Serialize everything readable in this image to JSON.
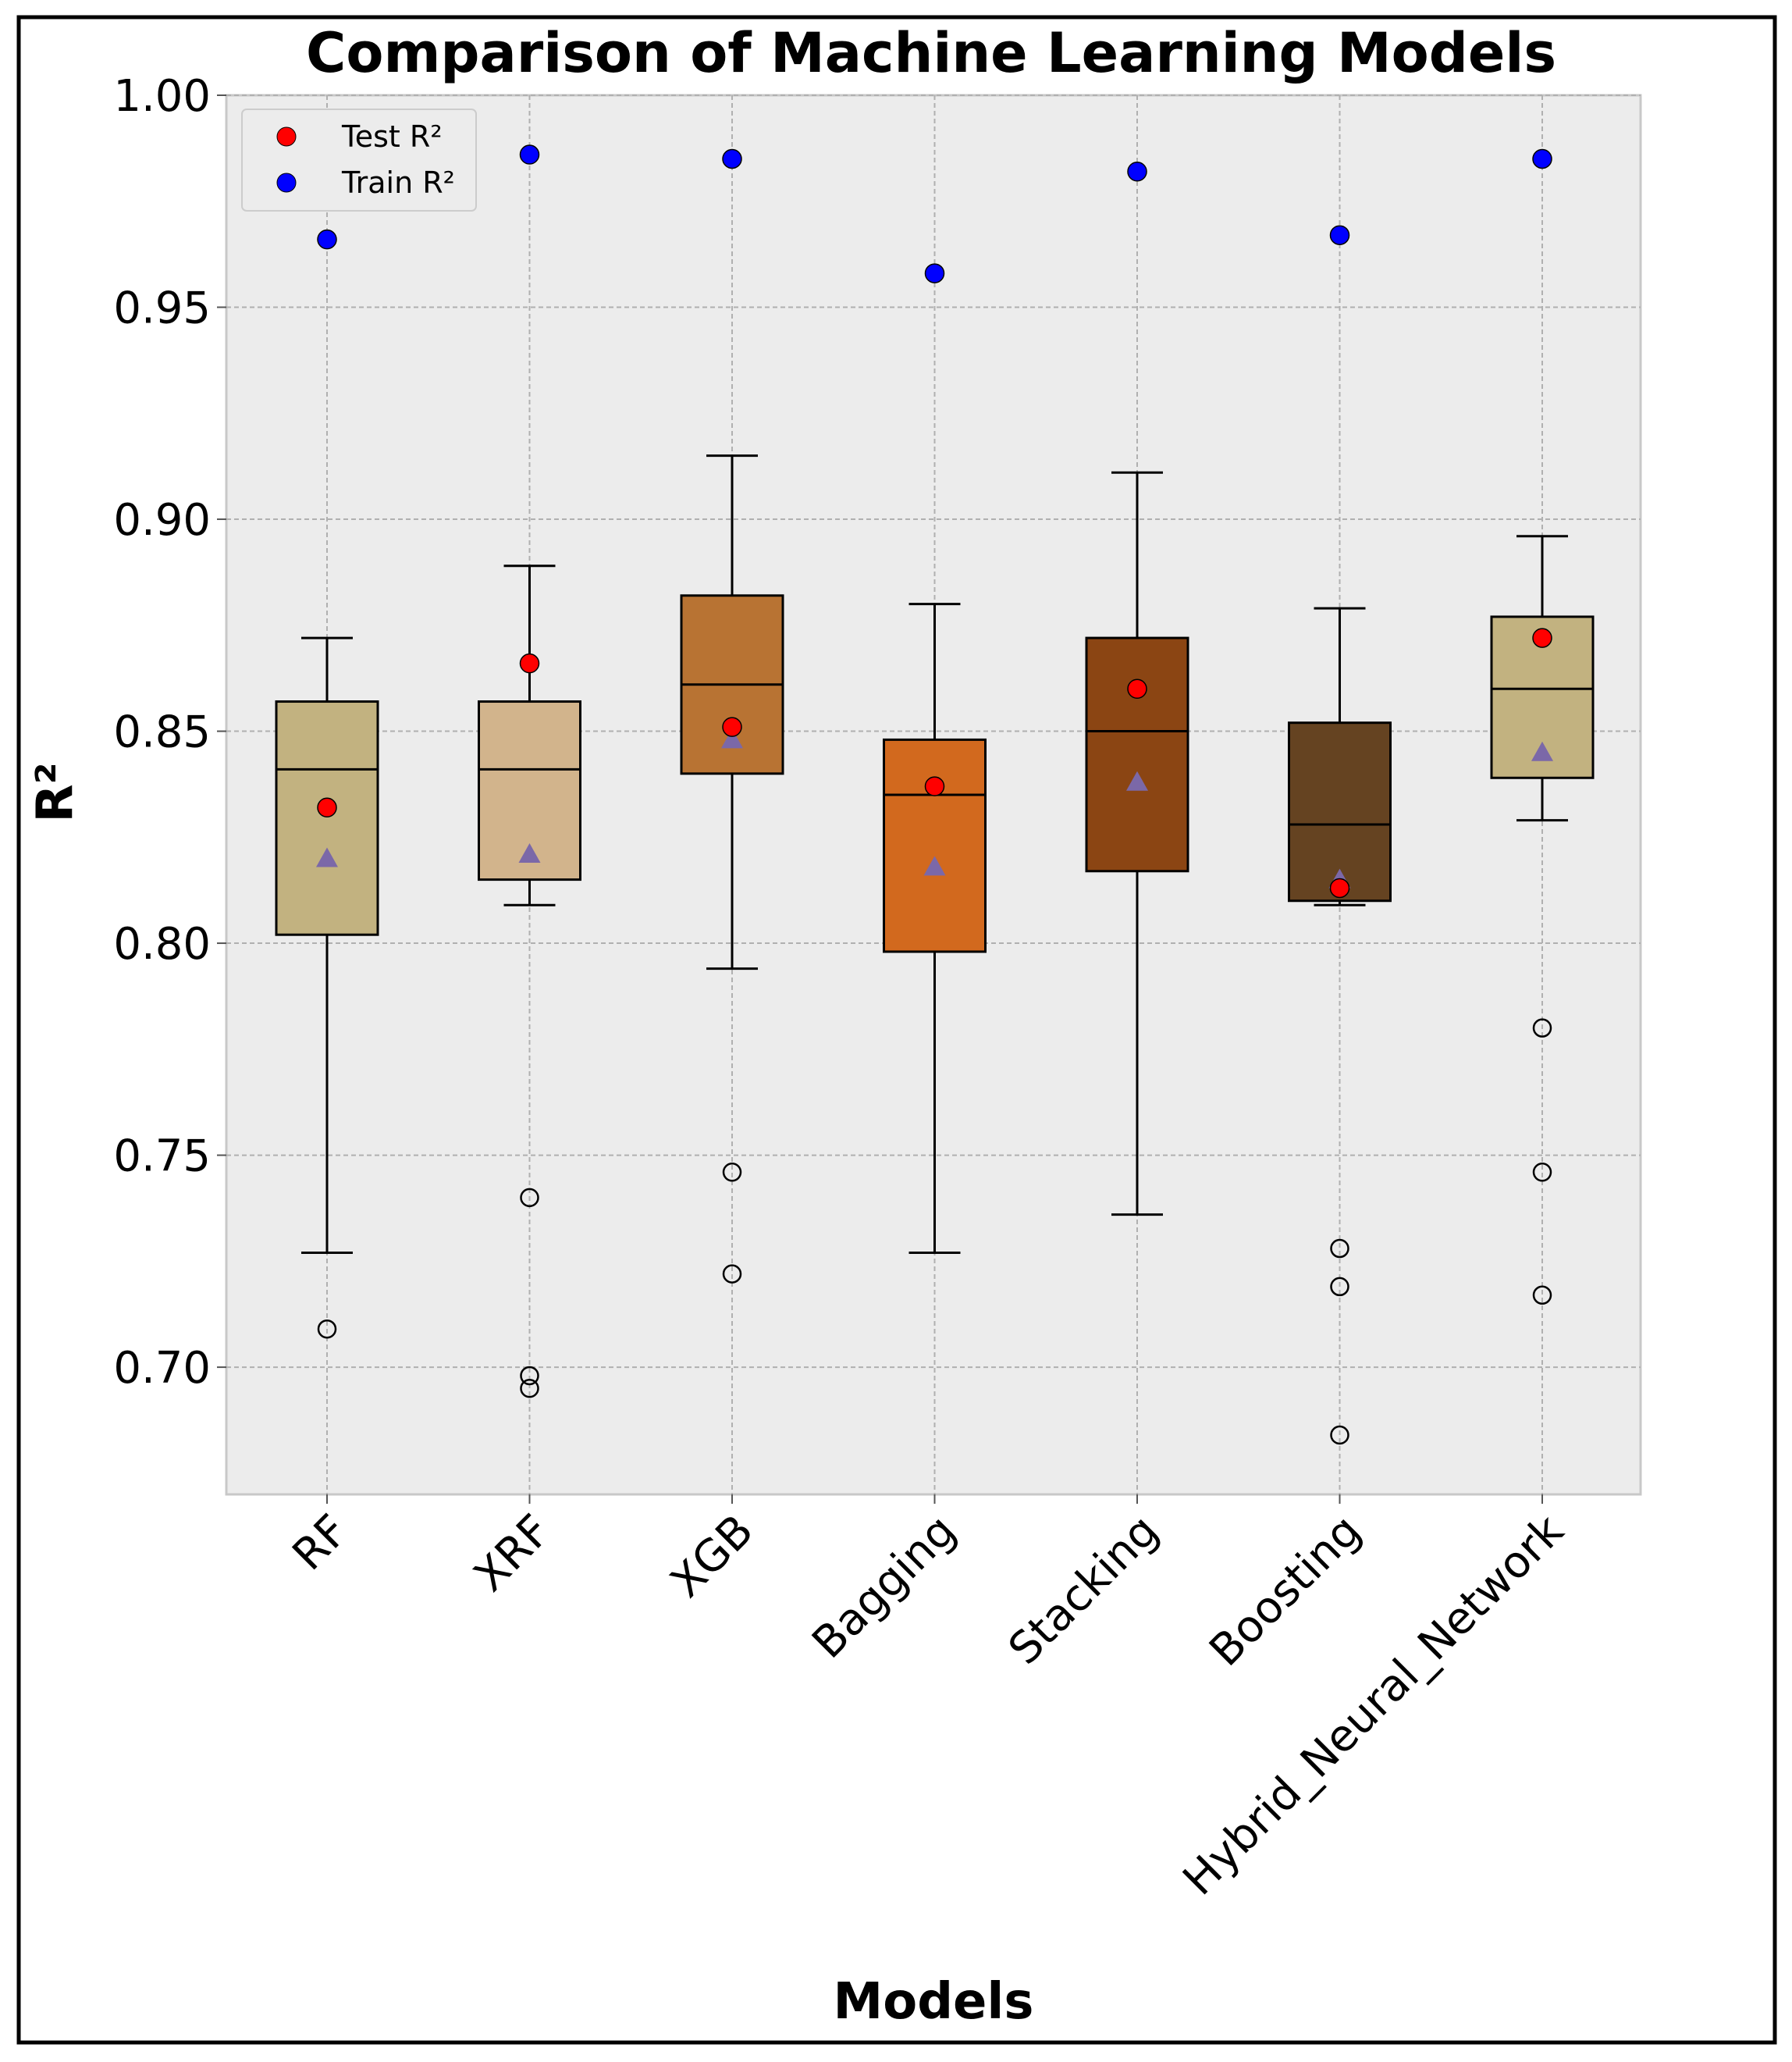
{
  "chart_data": {
    "type": "box",
    "title": "Comparison of Machine Learning Models",
    "xlabel": "Models",
    "ylabel": "R²",
    "ylim": [
      0.67,
      1.0
    ],
    "yticks": [
      "0.70",
      "0.75",
      "0.80",
      "0.85",
      "0.90",
      "0.95",
      "1.00"
    ],
    "ytick_values": [
      0.7,
      0.75,
      0.8,
      0.85,
      0.9,
      0.95,
      1.0
    ],
    "grid": true,
    "legend": {
      "position": "top-left",
      "entries": [
        {
          "label": "Test R²",
          "color": "#ff0000"
        },
        {
          "label": "Train R²",
          "color": "#0000ff"
        }
      ]
    },
    "categories": [
      "RF",
      "XRF",
      "XGB",
      "Bagging",
      "Stacking",
      "Boosting",
      "Hybrid_Neural_Network"
    ],
    "boxes": [
      {
        "name": "RF",
        "color": "#c2b280",
        "whisker_low": 0.727,
        "q1": 0.802,
        "median": 0.841,
        "q3": 0.857,
        "whisker_high": 0.872,
        "mean": 0.82,
        "outliers": [
          0.709
        ],
        "test_r2": 0.832,
        "train_r2": 0.966
      },
      {
        "name": "XRF",
        "color": "#d2b48c",
        "whisker_low": 0.809,
        "q1": 0.815,
        "median": 0.841,
        "q3": 0.857,
        "whisker_high": 0.889,
        "mean": 0.821,
        "outliers": [
          0.74,
          0.698,
          0.695
        ],
        "test_r2": 0.866,
        "train_r2": 0.986
      },
      {
        "name": "XGB",
        "color": "#b87333",
        "whisker_low": 0.794,
        "q1": 0.84,
        "median": 0.861,
        "q3": 0.882,
        "whisker_high": 0.915,
        "mean": 0.848,
        "outliers": [
          0.746,
          0.722
        ],
        "test_r2": 0.851,
        "train_r2": 0.985
      },
      {
        "name": "Bagging",
        "color": "#d2691e",
        "whisker_low": 0.727,
        "q1": 0.798,
        "median": 0.835,
        "q3": 0.848,
        "whisker_high": 0.88,
        "mean": 0.818,
        "outliers": [],
        "test_r2": 0.837,
        "train_r2": 0.958
      },
      {
        "name": "Stacking",
        "color": "#8b4513",
        "whisker_low": 0.736,
        "q1": 0.817,
        "median": 0.85,
        "q3": 0.872,
        "whisker_high": 0.911,
        "mean": 0.838,
        "outliers": [],
        "test_r2": 0.86,
        "train_r2": 0.982
      },
      {
        "name": "Boosting",
        "color": "#654321",
        "whisker_low": 0.809,
        "q1": 0.81,
        "median": 0.828,
        "q3": 0.852,
        "whisker_high": 0.879,
        "mean": 0.815,
        "outliers": [
          0.728,
          0.719,
          0.684
        ],
        "test_r2": 0.813,
        "train_r2": 0.967
      },
      {
        "name": "Hybrid_Neural_Network",
        "color": "#c2b280",
        "whisker_low": 0.829,
        "q1": 0.839,
        "median": 0.86,
        "q3": 0.877,
        "whisker_high": 0.896,
        "mean": 0.845,
        "outliers": [
          0.78,
          0.746,
          0.717
        ],
        "test_r2": 0.872,
        "train_r2": 0.985
      }
    ],
    "colors": {
      "plot_background": "#ececec",
      "grid": "#b0b0b0",
      "mean_marker": "#7b68a8",
      "test_marker": "#ff0000",
      "train_marker": "#0000ff"
    }
  }
}
